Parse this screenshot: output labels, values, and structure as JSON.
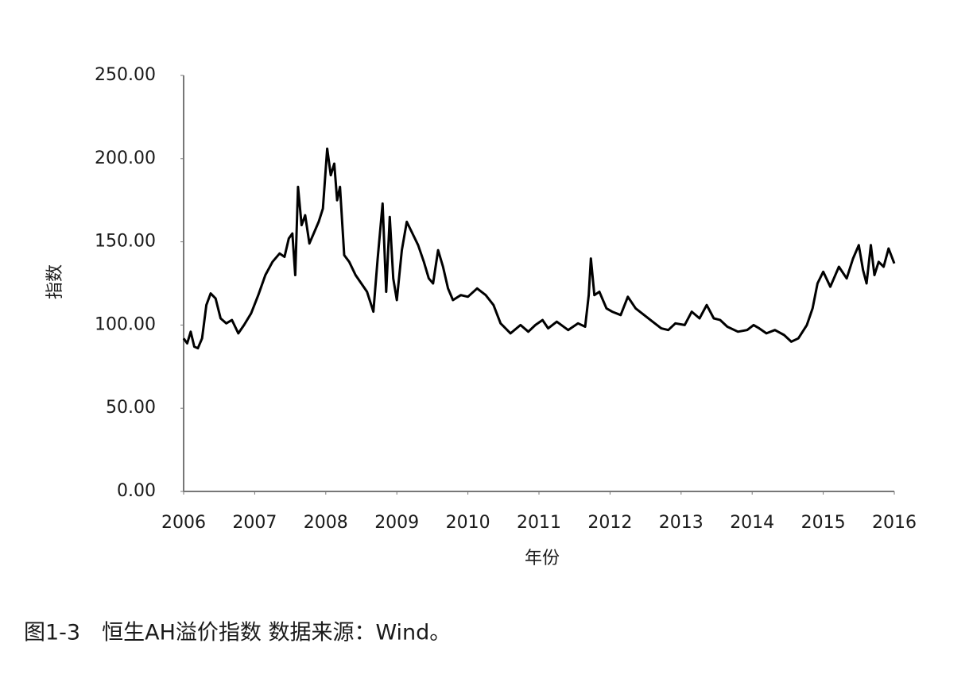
{
  "chart_data": {
    "type": "line",
    "xlabel": "年份",
    "ylabel": "指数",
    "caption": "图1-3　恒生AH溢价指数 数据来源：Wind。",
    "xlim": [
      2006,
      2016
    ],
    "xticks": [
      2006,
      2007,
      2008,
      2009,
      2010,
      2011,
      2012,
      2013,
      2014,
      2015,
      2016
    ],
    "ylim": [
      0,
      250
    ],
    "yticks": [
      {
        "value": 0,
        "label": "0.00"
      },
      {
        "value": 50,
        "label": "50.00"
      },
      {
        "value": 100,
        "label": "100.00"
      },
      {
        "value": 150,
        "label": "150.00"
      },
      {
        "value": 200,
        "label": "200.00"
      },
      {
        "value": 250,
        "label": "250.00"
      }
    ],
    "grid": false,
    "series": [
      {
        "color": "#000000",
        "x": [
          2006.0,
          2006.05,
          2006.1,
          2006.15,
          2006.2,
          2006.26,
          2006.32,
          2006.38,
          2006.45,
          2006.52,
          2006.6,
          2006.68,
          2006.77,
          2006.85,
          2006.95,
          2007.05,
          2007.15,
          2007.25,
          2007.35,
          2007.42,
          2007.48,
          2007.53,
          2007.57,
          2007.61,
          2007.66,
          2007.71,
          2007.77,
          2007.83,
          2007.9,
          2007.96,
          2008.02,
          2008.07,
          2008.12,
          2008.16,
          2008.2,
          2008.26,
          2008.33,
          2008.42,
          2008.5,
          2008.58,
          2008.67,
          2008.73,
          2008.8,
          2008.85,
          2008.9,
          2008.95,
          2009.0,
          2009.07,
          2009.14,
          2009.22,
          2009.3,
          2009.38,
          2009.45,
          2009.51,
          2009.58,
          2009.65,
          2009.72,
          2009.79,
          2009.9,
          2010.0,
          2010.13,
          2010.25,
          2010.36,
          2010.46,
          2010.6,
          2010.74,
          2010.85,
          2010.95,
          2011.05,
          2011.13,
          2011.25,
          2011.41,
          2011.55,
          2011.65,
          2011.7,
          2011.73,
          2011.78,
          2011.85,
          2011.95,
          2012.03,
          2012.15,
          2012.25,
          2012.36,
          2012.48,
          2012.6,
          2012.72,
          2012.82,
          2012.92,
          2013.05,
          2013.15,
          2013.26,
          2013.36,
          2013.46,
          2013.55,
          2013.65,
          2013.8,
          2013.93,
          2014.02,
          2014.1,
          2014.2,
          2014.32,
          2014.45,
          2014.55,
          2014.65,
          2014.77,
          2014.85,
          2014.92,
          2015.0,
          2015.1,
          2015.22,
          2015.33,
          2015.42,
          2015.5,
          2015.56,
          2015.61,
          2015.67,
          2015.72,
          2015.78,
          2015.85,
          2015.92,
          2016.0
        ],
        "values": [
          92,
          89,
          96,
          87,
          86,
          92,
          112,
          119,
          116,
          104,
          101,
          103,
          95,
          100,
          107,
          118,
          130,
          138,
          143,
          141,
          152,
          155,
          130,
          183,
          160,
          166,
          149,
          155,
          162,
          170,
          206,
          190,
          197,
          175,
          183,
          142,
          138,
          130,
          125,
          120,
          108,
          140,
          173,
          120,
          165,
          128,
          115,
          145,
          162,
          155,
          148,
          138,
          128,
          125,
          145,
          135,
          122,
          115,
          118,
          117,
          122,
          118,
          112,
          101,
          95,
          100,
          96,
          100,
          103,
          98,
          102,
          97,
          101,
          99,
          118,
          140,
          118,
          120,
          110,
          108,
          106,
          117,
          110,
          106,
          102,
          98,
          97,
          101,
          100,
          108,
          104,
          112,
          104,
          103,
          99,
          96,
          97,
          100,
          98,
          95,
          97,
          94,
          90,
          92,
          100,
          110,
          125,
          132,
          123,
          135,
          128,
          140,
          148,
          133,
          125,
          148,
          130,
          138,
          135,
          146,
          137
        ]
      }
    ]
  }
}
